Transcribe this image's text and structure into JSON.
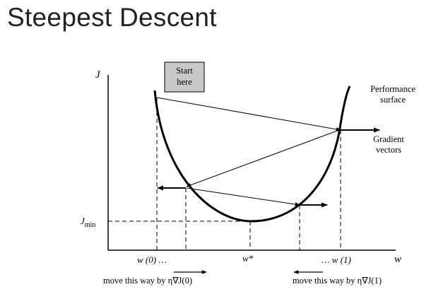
{
  "slide": {
    "title": "Steepest Descent"
  },
  "diagram": {
    "y_axis_label": "J",
    "x_axis_label": "w",
    "start_box": {
      "line1": "Start",
      "line2": "here",
      "fill": "#c8c8c8"
    },
    "performance_label": {
      "line1": "Performance",
      "line2": "surface"
    },
    "gradient_label": {
      "line1": "Gradient",
      "line2": "vectors"
    },
    "jmin_label": {
      "main": "J",
      "sub": "min"
    },
    "tick_w0": "w (0) …",
    "tick_wstar": "w*",
    "tick_w1": "… w (1)",
    "caption_left": "move this way by  η∇J(0)",
    "caption_right": "move this way by  η∇J(1)"
  }
}
